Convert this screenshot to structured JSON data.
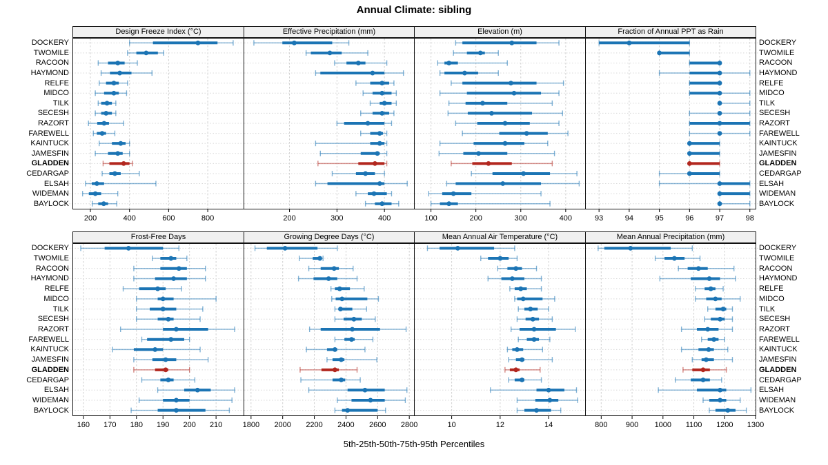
{
  "title": "Annual Climate: sibling",
  "xlabel": "5th-25th-50th-75th-95th Percentiles",
  "percentile_labels": [
    "5th",
    "25th",
    "50th",
    "75th",
    "95th"
  ],
  "mark_semantics": {
    "dot": "50th percentile",
    "thick_line": "25th-75th percentiles",
    "thin_line": "5th-95th percentiles"
  },
  "stations": [
    "DOCKERY",
    "TWOMILE",
    "RACOON",
    "HAYMOND",
    "RELFE",
    "MIDCO",
    "TILK",
    "SECESH",
    "RAZORT",
    "FAREWELL",
    "KAINTUCK",
    "JAMESFIN",
    "GLADDEN",
    "CEDARGAP",
    "ELSAH",
    "WIDEMAN",
    "BAYLOCK"
  ],
  "highlight_station": "GLADDEN",
  "colors": {
    "series_blue": "#1b74b4",
    "highlight_red": "#b2271f",
    "header_bg": "#f0f0f0",
    "panel_border": "#111111",
    "grid": "#cfcfcf",
    "row_grid": "#d8d8d8"
  },
  "chart_data": [
    {
      "type": "percentile-dotplot",
      "title": "Design Freeze Index (°C)",
      "xlim": [
        110,
        985
      ],
      "ticks": [
        200,
        400,
        600,
        800
      ],
      "grid": true,
      "values": [
        [
          400,
          520,
          750,
          850,
          930
        ],
        [
          390,
          435,
          485,
          545,
          575
        ],
        [
          240,
          290,
          340,
          375,
          440
        ],
        [
          255,
          300,
          350,
          410,
          515
        ],
        [
          245,
          280,
          320,
          345,
          390
        ],
        [
          225,
          270,
          320,
          345,
          385
        ],
        [
          240,
          255,
          285,
          310,
          330
        ],
        [
          225,
          255,
          280,
          310,
          330
        ],
        [
          190,
          235,
          270,
          295,
          370
        ],
        [
          215,
          233,
          260,
          280,
          325
        ],
        [
          245,
          310,
          355,
          380,
          400
        ],
        [
          225,
          290,
          340,
          365,
          400
        ],
        [
          265,
          297,
          370,
          400,
          415
        ],
        [
          260,
          297,
          325,
          355,
          450
        ],
        [
          175,
          207,
          233,
          270,
          535
        ],
        [
          160,
          192,
          225,
          255,
          340
        ],
        [
          210,
          240,
          268,
          290,
          335
        ]
      ]
    },
    {
      "type": "percentile-dotplot",
      "title": "Effective Precipitation (mm)",
      "xlim": [
        104,
        463
      ],
      "ticks": [
        200,
        300,
        400
      ],
      "grid": true,
      "values": [
        [
          125,
          185,
          210,
          290,
          325
        ],
        [
          235,
          245,
          285,
          310,
          365
        ],
        [
          295,
          320,
          345,
          360,
          405
        ],
        [
          255,
          265,
          375,
          400,
          440
        ],
        [
          340,
          370,
          395,
          410,
          420
        ],
        [
          355,
          375,
          395,
          415,
          425
        ],
        [
          370,
          390,
          400,
          415,
          425
        ],
        [
          350,
          375,
          395,
          410,
          420
        ],
        [
          300,
          315,
          365,
          400,
          415
        ],
        [
          350,
          370,
          390,
          397,
          405
        ],
        [
          255,
          370,
          390,
          400,
          405
        ],
        [
          265,
          350,
          385,
          390,
          405
        ],
        [
          260,
          345,
          380,
          400,
          405
        ],
        [
          290,
          340,
          360,
          380,
          400
        ],
        [
          255,
          280,
          390,
          400,
          448
        ],
        [
          340,
          365,
          378,
          405,
          415
        ],
        [
          360,
          380,
          395,
          415,
          430
        ]
      ]
    },
    {
      "type": "percentile-dotplot",
      "title": "Elevation (m)",
      "xlim": [
        63,
        444
      ],
      "ticks": [
        100,
        200,
        300,
        400
      ],
      "grid": true,
      "values": [
        [
          155,
          170,
          280,
          335,
          385
        ],
        [
          150,
          180,
          210,
          220,
          250
        ],
        [
          115,
          130,
          140,
          160,
          270
        ],
        [
          120,
          130,
          175,
          205,
          250
        ],
        [
          145,
          170,
          278,
          335,
          395
        ],
        [
          120,
          180,
          285,
          345,
          385
        ],
        [
          140,
          177,
          215,
          270,
          370
        ],
        [
          138,
          182,
          235,
          325,
          393
        ],
        [
          155,
          203,
          265,
          320,
          385
        ],
        [
          170,
          252,
          313,
          360,
          405
        ],
        [
          120,
          195,
          265,
          308,
          360
        ],
        [
          118,
          172,
          206,
          270,
          375
        ],
        [
          145,
          192,
          228,
          280,
          370
        ],
        [
          190,
          237,
          306,
          365,
          425
        ],
        [
          135,
          155,
          260,
          345,
          430
        ],
        [
          95,
          125,
          150,
          190,
          345
        ],
        [
          100,
          120,
          140,
          160,
          365
        ]
      ]
    },
    {
      "type": "percentile-dotplot",
      "title": "Fraction of Annual PPT as Rain",
      "xlim": [
        92.55,
        98.2
      ],
      "ticks": [
        93,
        94,
        95,
        96,
        97,
        98
      ],
      "grid": true,
      "values": [
        [
          93,
          93,
          94,
          96,
          96
        ],
        [
          95,
          95,
          95,
          96,
          96
        ],
        [
          96,
          96,
          97,
          97,
          97
        ],
        [
          95,
          96,
          97,
          97,
          98
        ],
        [
          96,
          96,
          97,
          97,
          97
        ],
        [
          96,
          96,
          97,
          97,
          98
        ],
        [
          97,
          97,
          97,
          97,
          98
        ],
        [
          96,
          97,
          97,
          97,
          98
        ],
        [
          96,
          96,
          97,
          98,
          98
        ],
        [
          96,
          97,
          97,
          97,
          98
        ],
        [
          96,
          96,
          96,
          97,
          97
        ],
        [
          96,
          96,
          96,
          97,
          97
        ],
        [
          96,
          96,
          96,
          97,
          97
        ],
        [
          95,
          96,
          96,
          97,
          97
        ],
        [
          95,
          97,
          97,
          98,
          98
        ],
        [
          97,
          97,
          97,
          98,
          98
        ],
        [
          97,
          97,
          97,
          97,
          98
        ]
      ]
    },
    {
      "type": "percentile-dotplot",
      "title": "Frost-Free Days",
      "xlim": [
        156,
        220.5
      ],
      "ticks": [
        160,
        170,
        180,
        190,
        200,
        210
      ],
      "grid": true,
      "values": [
        [
          159,
          168,
          177,
          190,
          196
        ],
        [
          186,
          189,
          193,
          195,
          199
        ],
        [
          179,
          189,
          196,
          199,
          206
        ],
        [
          179,
          187,
          194,
          199,
          206
        ],
        [
          175,
          181,
          188,
          191,
          197
        ],
        [
          180,
          188,
          190,
          194,
          210
        ],
        [
          180,
          185,
          190,
          195,
          205
        ],
        [
          180,
          188,
          192,
          194,
          204
        ],
        [
          174,
          190,
          195,
          207,
          217
        ],
        [
          182,
          184,
          193,
          198,
          200
        ],
        [
          171,
          179,
          187,
          190,
          204
        ],
        [
          179,
          186,
          191,
          195,
          207
        ],
        [
          179,
          187,
          191,
          192,
          200
        ],
        [
          182,
          189,
          192,
          194,
          202
        ],
        [
          188,
          198,
          203,
          208,
          217
        ],
        [
          181,
          190,
          195,
          200,
          216
        ],
        [
          178,
          188,
          195,
          206,
          215
        ]
      ]
    },
    {
      "type": "percentile-dotplot",
      "title": "Growing Degree Days (°C)",
      "xlim": [
        1755,
        2832
      ],
      "ticks": [
        1800,
        2000,
        2200,
        2400,
        2600,
        2800
      ],
      "grid": true,
      "values": [
        [
          1825,
          1900,
          2015,
          2220,
          2345
        ],
        [
          2105,
          2190,
          2235,
          2245,
          2255
        ],
        [
          2165,
          2240,
          2325,
          2355,
          2445
        ],
        [
          2100,
          2195,
          2290,
          2345,
          2470
        ],
        [
          2305,
          2330,
          2360,
          2425,
          2515
        ],
        [
          2310,
          2335,
          2375,
          2535,
          2605
        ],
        [
          2330,
          2355,
          2365,
          2440,
          2530
        ],
        [
          2330,
          2385,
          2450,
          2500,
          2585
        ],
        [
          2170,
          2240,
          2440,
          2615,
          2780
        ],
        [
          2330,
          2390,
          2435,
          2455,
          2570
        ],
        [
          2150,
          2280,
          2330,
          2345,
          2520
        ],
        [
          2280,
          2315,
          2370,
          2390,
          2595
        ],
        [
          2110,
          2245,
          2330,
          2355,
          2470
        ],
        [
          2115,
          2315,
          2370,
          2395,
          2490
        ],
        [
          2165,
          2410,
          2520,
          2645,
          2785
        ],
        [
          2345,
          2435,
          2555,
          2645,
          2775
        ],
        [
          2330,
          2375,
          2410,
          2600,
          2650
        ]
      ]
    },
    {
      "type": "percentile-dotplot",
      "title": "Mean Annual Air Temperature (°C)",
      "xlim": [
        8.46,
        15.52
      ],
      "ticks": [
        10,
        12,
        14
      ],
      "grid": true,
      "values": [
        [
          9.0,
          9.5,
          10.25,
          11.75,
          12.6
        ],
        [
          11.2,
          11.5,
          12.0,
          12.35,
          12.7
        ],
        [
          11.9,
          12.3,
          12.65,
          12.9,
          13.5
        ],
        [
          11.5,
          12.05,
          12.5,
          13.0,
          13.7
        ],
        [
          12.4,
          12.6,
          12.85,
          13.1,
          13.7
        ],
        [
          12.6,
          12.7,
          12.95,
          13.75,
          14.25
        ],
        [
          12.75,
          13.0,
          13.25,
          13.55,
          14.0
        ],
        [
          12.7,
          13.05,
          13.35,
          13.6,
          14.15
        ],
        [
          12.45,
          12.8,
          13.4,
          14.3,
          15.1
        ],
        [
          12.75,
          13.1,
          13.4,
          13.6,
          14.05
        ],
        [
          12.3,
          12.5,
          12.7,
          12.95,
          13.75
        ],
        [
          12.35,
          12.65,
          12.9,
          13.0,
          14.15
        ],
        [
          12.2,
          12.4,
          12.65,
          12.8,
          13.65
        ],
        [
          12.35,
          12.6,
          12.9,
          13.0,
          13.7
        ],
        [
          11.6,
          13.5,
          14.0,
          14.65,
          15.15
        ],
        [
          12.7,
          13.45,
          14.05,
          14.4,
          15.2
        ],
        [
          12.7,
          13.0,
          13.5,
          14.1,
          14.5
        ]
      ]
    },
    {
      "type": "percentile-dotplot",
      "title": "Mean Annual Precipitation (mm)",
      "xlim": [
        749,
        1301
      ],
      "ticks": [
        800,
        900,
        1000,
        1100,
        1200,
        1300
      ],
      "grid": true,
      "values": [
        [
          790,
          810,
          895,
          1025,
          1095
        ],
        [
          975,
          1005,
          1037,
          1070,
          1120
        ],
        [
          1050,
          1080,
          1115,
          1145,
          1230
        ],
        [
          990,
          1090,
          1150,
          1185,
          1235
        ],
        [
          1105,
          1135,
          1155,
          1170,
          1195
        ],
        [
          1105,
          1140,
          1170,
          1190,
          1250
        ],
        [
          1145,
          1170,
          1195,
          1205,
          1225
        ],
        [
          1135,
          1155,
          1185,
          1200,
          1225
        ],
        [
          1060,
          1110,
          1145,
          1180,
          1225
        ],
        [
          1125,
          1145,
          1165,
          1180,
          1200
        ],
        [
          1060,
          1115,
          1148,
          1165,
          1210
        ],
        [
          1095,
          1125,
          1140,
          1165,
          1225
        ],
        [
          1065,
          1095,
          1130,
          1152,
          1205
        ],
        [
          1040,
          1090,
          1130,
          1152,
          1190
        ],
        [
          985,
          1110,
          1185,
          1205,
          1285
        ],
        [
          1130,
          1150,
          1185,
          1205,
          1250
        ],
        [
          1150,
          1170,
          1210,
          1235,
          1270
        ]
      ]
    }
  ]
}
